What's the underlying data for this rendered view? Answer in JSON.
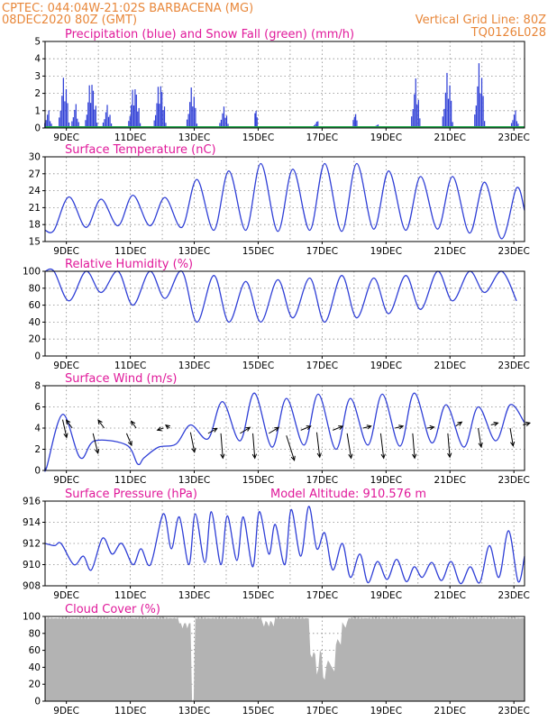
{
  "header": {
    "line1": "CPTEC:   044:04W-21:02S  BARBACENA (MG)",
    "line2_left": "08DEC2020 80Z (GMT)",
    "line2_right": "Vertical Grid Line: 80Z",
    "line3_right": "TQ0126L028"
  },
  "colors": {
    "header": "#e8873a",
    "title": "#e0199a",
    "line": "#2f3fd6",
    "snow": "#22a64a",
    "cloud": "#b3b3b3"
  },
  "x_tick_labels": [
    "9DEC",
    "11DEC",
    "13DEC",
    "15DEC",
    "17DEC",
    "19DEC",
    "21DEC",
    "23DEC"
  ],
  "chart_data": [
    {
      "type": "bar",
      "title": "Precipitation (blue) and Snow Fall (green) (mm/h)",
      "x_unit": "days since 08DEC2020 08Z",
      "xlim": [
        0,
        15
      ],
      "ylim": [
        0,
        5
      ],
      "y_ticks": [
        0,
        1,
        2,
        3,
        4,
        5
      ],
      "series": [
        {
          "name": "Precipitation",
          "color": "#2f3fd6",
          "events": [
            {
              "x": 0.1,
              "w": 0.25,
              "peak": 1.1
            },
            {
              "x": 0.6,
              "w": 0.35,
              "peak": 3.1
            },
            {
              "x": 0.95,
              "w": 0.25,
              "peak": 1.5
            },
            {
              "x": 1.45,
              "w": 0.4,
              "peak": 2.9
            },
            {
              "x": 1.95,
              "w": 0.3,
              "peak": 1.4
            },
            {
              "x": 2.8,
              "w": 0.4,
              "peak": 2.6
            },
            {
              "x": 3.6,
              "w": 0.4,
              "peak": 2.8
            },
            {
              "x": 4.6,
              "w": 0.35,
              "peak": 2.5
            },
            {
              "x": 5.6,
              "w": 0.3,
              "peak": 1.3
            },
            {
              "x": 6.6,
              "w": 0.1,
              "peak": 1.7
            },
            {
              "x": 8.5,
              "w": 0.2,
              "peak": 0.5
            },
            {
              "x": 9.7,
              "w": 0.15,
              "peak": 1.2
            },
            {
              "x": 10.4,
              "w": 0.15,
              "peak": 0.3
            },
            {
              "x": 11.6,
              "w": 0.3,
              "peak": 3.0
            },
            {
              "x": 12.6,
              "w": 0.35,
              "peak": 3.4
            },
            {
              "x": 13.6,
              "w": 0.35,
              "peak": 4.0
            },
            {
              "x": 14.7,
              "w": 0.25,
              "peak": 1.1
            }
          ]
        },
        {
          "name": "Snow Fall",
          "color": "#22a64a",
          "values": 0
        }
      ]
    },
    {
      "type": "line",
      "title": "Surface Temperature (nC)",
      "xlim": [
        0,
        15
      ],
      "ylim": [
        15,
        30
      ],
      "y_ticks": [
        15,
        18,
        21,
        24,
        27,
        30
      ],
      "daily": [
        {
          "max_x": 0.75,
          "max": 22.9,
          "min_x": 0.28,
          "min": 17.0
        },
        {
          "max_x": 1.75,
          "max": 22.5,
          "min_x": 1.28,
          "min": 17.5
        },
        {
          "max_x": 2.75,
          "max": 23.2,
          "min_x": 2.28,
          "min": 17.8
        },
        {
          "max_x": 3.75,
          "max": 22.8,
          "min_x": 3.28,
          "min": 17.8
        },
        {
          "max_x": 4.75,
          "max": 26.0,
          "min_x": 4.28,
          "min": 17.5
        },
        {
          "max_x": 5.75,
          "max": 27.5,
          "min_x": 5.28,
          "min": 17.0
        },
        {
          "max_x": 6.75,
          "max": 28.8,
          "min_x": 6.28,
          "min": 17.0
        },
        {
          "max_x": 7.75,
          "max": 27.8,
          "min_x": 7.28,
          "min": 16.8
        },
        {
          "max_x": 8.75,
          "max": 28.8,
          "min_x": 8.28,
          "min": 17.0
        },
        {
          "max_x": 9.75,
          "max": 28.8,
          "min_x": 9.28,
          "min": 16.8
        },
        {
          "max_x": 10.75,
          "max": 27.5,
          "min_x": 10.28,
          "min": 17.2
        },
        {
          "max_x": 11.75,
          "max": 26.5,
          "min_x": 11.28,
          "min": 17.0
        },
        {
          "max_x": 12.75,
          "max": 26.5,
          "min_x": 12.28,
          "min": 17.2
        },
        {
          "max_x": 13.75,
          "max": 25.5,
          "min_x": 13.28,
          "min": 16.5
        },
        {
          "max_x": 14.75,
          "max": 24.5,
          "min_x": 14.28,
          "min": 15.5
        }
      ],
      "end_value": 20.5
    },
    {
      "type": "line",
      "title": "Relative Humidity (%)",
      "xlim": [
        0,
        15
      ],
      "ylim": [
        0,
        100
      ],
      "y_ticks": [
        0,
        20,
        40,
        60,
        80,
        100
      ],
      "daily": [
        {
          "min_x": 0.75,
          "min": 65,
          "max_x": 0.28,
          "max": 100
        },
        {
          "min_x": 1.75,
          "min": 75,
          "max_x": 1.28,
          "max": 100
        },
        {
          "min_x": 2.75,
          "min": 60,
          "max_x": 2.28,
          "max": 100
        },
        {
          "min_x": 3.75,
          "min": 68,
          "max_x": 3.28,
          "max": 100
        },
        {
          "min_x": 4.75,
          "min": 40,
          "max_x": 4.28,
          "max": 100
        },
        {
          "min_x": 5.75,
          "min": 40,
          "max_x": 5.28,
          "max": 95
        },
        {
          "min_x": 6.75,
          "min": 40,
          "max_x": 6.28,
          "max": 88
        },
        {
          "min_x": 7.75,
          "min": 45,
          "max_x": 7.28,
          "max": 90
        },
        {
          "min_x": 8.75,
          "min": 40,
          "max_x": 8.28,
          "max": 92
        },
        {
          "min_x": 9.75,
          "min": 45,
          "max_x": 9.28,
          "max": 95
        },
        {
          "min_x": 10.75,
          "min": 50,
          "max_x": 10.28,
          "max": 92
        },
        {
          "min_x": 11.75,
          "min": 55,
          "max_x": 11.28,
          "max": 95
        },
        {
          "min_x": 12.75,
          "min": 65,
          "max_x": 12.28,
          "max": 100
        },
        {
          "min_x": 13.75,
          "min": 75,
          "max_x": 13.28,
          "max": 100
        },
        {
          "min_x": 14.75,
          "min": 65,
          "max_x": 14.28,
          "max": 100
        }
      ]
    },
    {
      "type": "line",
      "title": "Surface Wind (m/s)",
      "xlim": [
        0,
        15
      ],
      "ylim": [
        0,
        8
      ],
      "y_ticks": [
        0,
        2,
        4,
        6,
        8
      ],
      "daily": [
        {
          "max_x": 0.55,
          "max": 5.3,
          "min_x": 0.05,
          "min": 0.3
        },
        {
          "max_x": 1.55,
          "max": 2.8,
          "min_x": 1.1,
          "min": 1.2
        },
        {
          "max_x": 2.55,
          "max": 2.4,
          "min_x": 2.9,
          "min": 0.6
        },
        {
          "max_x": 3.55,
          "max": 2.2,
          "min_x": 3.1,
          "min": 1.2
        },
        {
          "max_x": 4.55,
          "max": 4.3,
          "min_x": 4.1,
          "min": 2.5
        },
        {
          "max_x": 5.55,
          "max": 6.5,
          "min_x": 5.1,
          "min": 3.0
        },
        {
          "max_x": 6.55,
          "max": 7.3,
          "min_x": 6.1,
          "min": 2.8
        },
        {
          "max_x": 7.55,
          "max": 6.8,
          "min_x": 7.1,
          "min": 2.2
        },
        {
          "max_x": 8.55,
          "max": 7.2,
          "min_x": 8.1,
          "min": 2.4
        },
        {
          "max_x": 9.55,
          "max": 6.8,
          "min_x": 9.1,
          "min": 2.0
        },
        {
          "max_x": 10.55,
          "max": 7.2,
          "min_x": 10.1,
          "min": 2.4
        },
        {
          "max_x": 11.55,
          "max": 7.3,
          "min_x": 11.1,
          "min": 2.3
        },
        {
          "max_x": 12.55,
          "max": 6.2,
          "min_x": 12.1,
          "min": 2.6
        },
        {
          "max_x": 13.55,
          "max": 6.0,
          "min_x": 13.1,
          "min": 2.2
        },
        {
          "max_x": 14.55,
          "max": 6.2,
          "min_x": 14.1,
          "min": 2.8
        }
      ],
      "end_value": 4.5,
      "arrows": [
        {
          "x": 0.55,
          "y": 4.8,
          "dx": 0.2,
          "dy": -1.8
        },
        {
          "x": 0.85,
          "y": 4.0,
          "dx": -0.3,
          "dy": 0.8
        },
        {
          "x": 1.5,
          "y": 3.5,
          "dx": 0.25,
          "dy": -2.0
        },
        {
          "x": 1.85,
          "y": 4.0,
          "dx": -0.3,
          "dy": 0.8
        },
        {
          "x": 2.55,
          "y": 3.5,
          "dx": 0.25,
          "dy": -1.2
        },
        {
          "x": 2.85,
          "y": 4.0,
          "dx": -0.25,
          "dy": 0.7
        },
        {
          "x": 3.7,
          "y": 4.0,
          "dx": -0.3,
          "dy": -0.2
        },
        {
          "x": 3.9,
          "y": 4.0,
          "dx": -0.2,
          "dy": 0.3
        },
        {
          "x": 4.55,
          "y": 3.6,
          "dx": 0.2,
          "dy": -2.0
        },
        {
          "x": 5.1,
          "y": 3.5,
          "dx": 0.45,
          "dy": 0.5
        },
        {
          "x": 5.5,
          "y": 3.5,
          "dx": 0.1,
          "dy": -2.5
        },
        {
          "x": 6.1,
          "y": 3.5,
          "dx": 0.5,
          "dy": 0.6
        },
        {
          "x": 6.5,
          "y": 3.5,
          "dx": 0.1,
          "dy": -2.5
        },
        {
          "x": 7.0,
          "y": 3.5,
          "dx": 0.5,
          "dy": 0.6
        },
        {
          "x": 7.55,
          "y": 3.3,
          "dx": 0.4,
          "dy": -2.5
        },
        {
          "x": 8.0,
          "y": 3.8,
          "dx": 0.5,
          "dy": 0.4
        },
        {
          "x": 8.5,
          "y": 3.6,
          "dx": 0.15,
          "dy": -2.5
        },
        {
          "x": 9.0,
          "y": 3.8,
          "dx": 0.5,
          "dy": 0.4
        },
        {
          "x": 9.45,
          "y": 3.5,
          "dx": 0.2,
          "dy": -2.5
        },
        {
          "x": 9.95,
          "y": 4.0,
          "dx": 0.4,
          "dy": 0.2
        },
        {
          "x": 10.5,
          "y": 3.5,
          "dx": 0.15,
          "dy": -2.5
        },
        {
          "x": 10.95,
          "y": 4.0,
          "dx": 0.4,
          "dy": 0.2
        },
        {
          "x": 11.5,
          "y": 3.5,
          "dx": 0.1,
          "dy": -2.5
        },
        {
          "x": 11.95,
          "y": 4.0,
          "dx": 0.35,
          "dy": 0.1
        },
        {
          "x": 12.6,
          "y": 3.5,
          "dx": 0.1,
          "dy": -2.4
        },
        {
          "x": 12.85,
          "y": 4.2,
          "dx": 0.3,
          "dy": 0.4
        },
        {
          "x": 13.55,
          "y": 4.0,
          "dx": 0.15,
          "dy": -1.9
        },
        {
          "x": 13.95,
          "y": 4.3,
          "dx": 0.35,
          "dy": 0.2
        },
        {
          "x": 14.55,
          "y": 4.0,
          "dx": 0.15,
          "dy": -1.8
        },
        {
          "x": 14.95,
          "y": 4.3,
          "dx": 0.35,
          "dy": 0.2
        }
      ]
    },
    {
      "type": "line",
      "title": "Surface Pressure (hPa)",
      "annotation": "Model Altitude: 910.576 m",
      "xlim": [
        0,
        15
      ],
      "ylim": [
        908,
        916
      ],
      "y_ticks": [
        908,
        910,
        912,
        914,
        916
      ],
      "semidiurnal": [
        {
          "x": 0.0,
          "v": 912
        },
        {
          "x": 0.3,
          "v": 911.8
        },
        {
          "x": 0.5,
          "v": 912
        },
        {
          "x": 0.9,
          "v": 910
        },
        {
          "x": 1.2,
          "v": 910.8
        },
        {
          "x": 1.45,
          "v": 909.5
        },
        {
          "x": 1.8,
          "v": 912.5
        },
        {
          "x": 2.1,
          "v": 911
        },
        {
          "x": 2.4,
          "v": 912
        },
        {
          "x": 2.75,
          "v": 910
        },
        {
          "x": 3.0,
          "v": 911.5
        },
        {
          "x": 3.3,
          "v": 910
        },
        {
          "x": 3.7,
          "v": 914.8
        },
        {
          "x": 3.95,
          "v": 911.5
        },
        {
          "x": 4.2,
          "v": 914.5
        },
        {
          "x": 4.5,
          "v": 910
        },
        {
          "x": 4.7,
          "v": 914.8
        },
        {
          "x": 5.0,
          "v": 910.2
        },
        {
          "x": 5.2,
          "v": 915
        },
        {
          "x": 5.5,
          "v": 910
        },
        {
          "x": 5.7,
          "v": 914.6
        },
        {
          "x": 6.0,
          "v": 910.4
        },
        {
          "x": 6.2,
          "v": 914.5
        },
        {
          "x": 6.5,
          "v": 909.8
        },
        {
          "x": 6.7,
          "v": 915
        },
        {
          "x": 7.0,
          "v": 911
        },
        {
          "x": 7.2,
          "v": 913.8
        },
        {
          "x": 7.5,
          "v": 910
        },
        {
          "x": 7.7,
          "v": 915.2
        },
        {
          "x": 8.0,
          "v": 910.8
        },
        {
          "x": 8.25,
          "v": 915.5
        },
        {
          "x": 8.5,
          "v": 911.5
        },
        {
          "x": 8.75,
          "v": 913
        },
        {
          "x": 9.0,
          "v": 909.5
        },
        {
          "x": 9.3,
          "v": 912
        },
        {
          "x": 9.55,
          "v": 908.8
        },
        {
          "x": 9.85,
          "v": 911
        },
        {
          "x": 10.1,
          "v": 908.3
        },
        {
          "x": 10.4,
          "v": 910.3
        },
        {
          "x": 10.7,
          "v": 908.6
        },
        {
          "x": 11.0,
          "v": 910.5
        },
        {
          "x": 11.3,
          "v": 908.4
        },
        {
          "x": 11.55,
          "v": 909.8
        },
        {
          "x": 11.8,
          "v": 908.8
        },
        {
          "x": 12.1,
          "v": 910.2
        },
        {
          "x": 12.4,
          "v": 908.5
        },
        {
          "x": 12.7,
          "v": 910.3
        },
        {
          "x": 13.0,
          "v": 908.2
        },
        {
          "x": 13.3,
          "v": 909.8
        },
        {
          "x": 13.6,
          "v": 908.3
        },
        {
          "x": 13.9,
          "v": 911.8
        },
        {
          "x": 14.2,
          "v": 908.8
        },
        {
          "x": 14.5,
          "v": 913.2
        },
        {
          "x": 14.8,
          "v": 908.4
        },
        {
          "x": 15.0,
          "v": 910.8
        }
      ]
    },
    {
      "type": "area",
      "title": "Cloud Cover (%)",
      "xlim": [
        0,
        15
      ],
      "ylim": [
        0,
        100
      ],
      "y_ticks": [
        0,
        20,
        40,
        60,
        80,
        100
      ],
      "base": 100,
      "features": [
        {
          "x0": 4.2,
          "x1": 4.7,
          "v": 90
        },
        {
          "x0": 4.6,
          "x1": 4.7,
          "v": 0
        },
        {
          "x0": 6.8,
          "x1": 7.2,
          "v": 92
        },
        {
          "x0": 8.3,
          "x1": 8.5,
          "v": 55
        },
        {
          "x0": 8.5,
          "x1": 8.6,
          "v": 35
        },
        {
          "x0": 8.6,
          "x1": 8.7,
          "v": 60
        },
        {
          "x0": 8.7,
          "x1": 8.8,
          "v": 25
        },
        {
          "x0": 8.8,
          "x1": 9.0,
          "v": 45
        },
        {
          "x0": 9.0,
          "x1": 9.1,
          "v": 35
        },
        {
          "x0": 9.1,
          "x1": 9.3,
          "v": 70
        },
        {
          "x0": 9.3,
          "x1": 9.5,
          "v": 90
        }
      ]
    }
  ]
}
